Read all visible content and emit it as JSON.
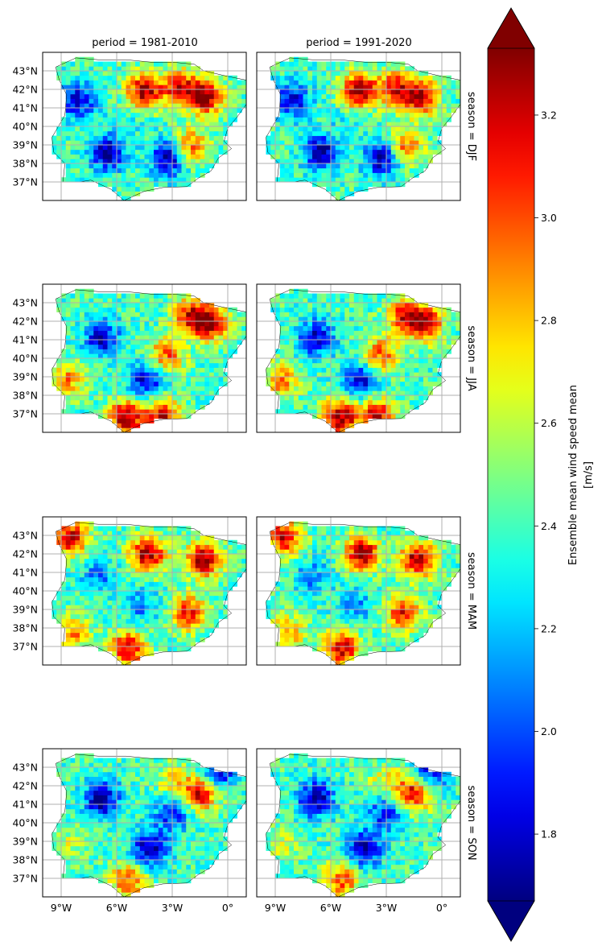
{
  "chart_data": {
    "type": "heatmap",
    "column_titles": [
      "period = 1981-2010",
      "period = 1991-2020"
    ],
    "row_labels": [
      "season = DJF",
      "season = JJA",
      "season = MAM",
      "season = SON"
    ],
    "lat_ticks": [
      "43°N",
      "42°N",
      "41°N",
      "40°N",
      "39°N",
      "38°N",
      "37°N"
    ],
    "lat_values": [
      43,
      42,
      41,
      40,
      39,
      38,
      37
    ],
    "lon_ticks": [
      "9°W",
      "6°W",
      "3°W",
      "0°"
    ],
    "lon_values": [
      -9,
      -6,
      -3,
      0
    ],
    "extent": {
      "lon": [
        -10,
        1
      ],
      "lat": [
        36,
        44
      ]
    },
    "grid": true,
    "colormap": "jet",
    "colorbar": {
      "label_line1": "Ensemble mean wind speed mean",
      "label_line2": "[m/s]",
      "ticks": [
        "1.8",
        "2.0",
        "2.2",
        "2.4",
        "2.6",
        "2.8",
        "3.0",
        "3.2"
      ],
      "tick_values": [
        1.8,
        2.0,
        2.2,
        2.4,
        2.6,
        2.8,
        3.0,
        3.2
      ],
      "vmin": 1.67,
      "vmax": 3.33,
      "extend": "both"
    },
    "panels": [
      {
        "period": "1981-2010",
        "season": "DJF"
      },
      {
        "period": "1991-2020",
        "season": "DJF"
      },
      {
        "period": "1981-2010",
        "season": "JJA"
      },
      {
        "period": "1991-2020",
        "season": "JJA"
      },
      {
        "period": "1981-2010",
        "season": "MAM"
      },
      {
        "period": "1991-2020",
        "season": "MAM"
      },
      {
        "period": "1981-2010",
        "season": "SON"
      },
      {
        "period": "1991-2020",
        "season": "SON"
      }
    ],
    "field_centers": {
      "DJF": [
        [
          -4.5,
          41.9,
          3.3
        ],
        [
          -1.2,
          41.6,
          3.3
        ],
        [
          -2.6,
          42.1,
          3.1
        ],
        [
          -6.5,
          38.6,
          1.7
        ],
        [
          -3.2,
          38.3,
          1.7
        ],
        [
          -8.1,
          41.4,
          1.8
        ],
        [
          -2.0,
          38.9,
          3.0
        ],
        [
          -5.2,
          40.5,
          2.3
        ]
      ],
      "JJA": [
        [
          -6.8,
          41.1,
          1.8
        ],
        [
          -4.4,
          38.8,
          1.8
        ],
        [
          -0.9,
          41.9,
          3.2
        ],
        [
          -2.0,
          42.3,
          3.1
        ],
        [
          -3.3,
          40.2,
          3.0
        ],
        [
          -5.5,
          36.8,
          3.3
        ],
        [
          -8.7,
          38.8,
          2.9
        ],
        [
          -3.5,
          36.9,
          3.2
        ]
      ],
      "MAM": [
        [
          -4.3,
          42.0,
          3.3
        ],
        [
          -1.3,
          41.7,
          3.3
        ],
        [
          -2.1,
          38.8,
          3.1
        ],
        [
          -5.4,
          36.9,
          3.2
        ],
        [
          -8.5,
          42.9,
          3.2
        ],
        [
          -7.0,
          40.8,
          2.1
        ],
        [
          -4.7,
          39.2,
          2.1
        ],
        [
          -8.4,
          37.7,
          2.9
        ]
      ],
      "SON": [
        [
          -6.8,
          41.3,
          1.7
        ],
        [
          -4.2,
          38.6,
          1.7
        ],
        [
          -1.5,
          41.6,
          3.2
        ],
        [
          -0.5,
          42.8,
          1.8
        ],
        [
          -5.4,
          36.9,
          3.0
        ],
        [
          -3.0,
          42.3,
          2.7
        ],
        [
          -8.6,
          38.8,
          2.6
        ],
        [
          -3.0,
          40.5,
          1.9
        ]
      ]
    },
    "field_base": 2.4
  }
}
